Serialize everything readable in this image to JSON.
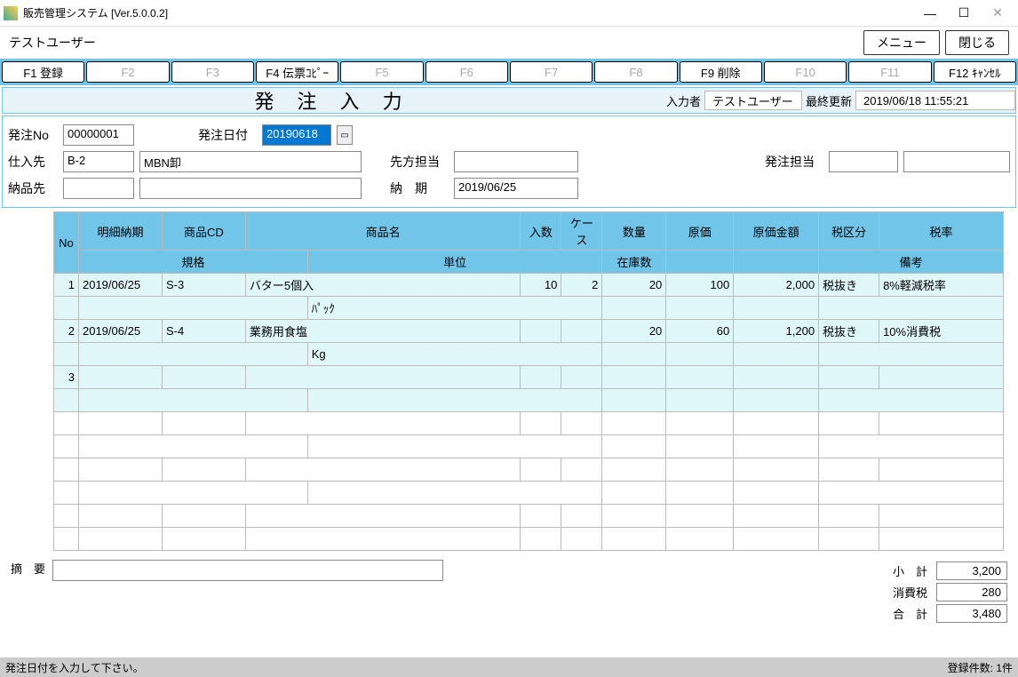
{
  "window": {
    "title": "販売管理システム [Ver.5.0.0.2]"
  },
  "user": "テストユーザー",
  "topButtons": {
    "menu": "メニュー",
    "close": "閉じる"
  },
  "fkeys": [
    {
      "label": "F1 登録",
      "enabled": true
    },
    {
      "label": "F2",
      "enabled": false
    },
    {
      "label": "F3",
      "enabled": false
    },
    {
      "label": "F4 伝票ｺﾋﾟｰ",
      "enabled": true
    },
    {
      "label": "F5",
      "enabled": false
    },
    {
      "label": "F6",
      "enabled": false
    },
    {
      "label": "F7",
      "enabled": false
    },
    {
      "label": "F8",
      "enabled": false
    },
    {
      "label": "F9 削除",
      "enabled": true
    },
    {
      "label": "F10",
      "enabled": false
    },
    {
      "label": "F11",
      "enabled": false
    },
    {
      "label": "F12 ｷｬﾝｾﾙ",
      "enabled": true
    }
  ],
  "header": {
    "screenTitle": "発 注 入 力",
    "inputByLabel": "入力者",
    "inputBy": "テストユーザー",
    "lastUpdateLabel": "最終更新",
    "lastUpdate": "2019/06/18 11:55:21"
  },
  "form": {
    "orderNoLabel": "発注No",
    "orderNo": "00000001",
    "orderDateLabel": "発注日付",
    "orderDate": "20190618",
    "supplierLabel": "仕入先",
    "supplierCode": "B-2",
    "supplierName": "MBN卸",
    "contactLabel": "先方担当",
    "contact": "",
    "managerLabel": "発注担当",
    "managerCode": "",
    "managerName": "",
    "deliveryLabel": "納品先",
    "deliveryCode": "",
    "deliveryName": "",
    "dueLabel": "納　期",
    "due": "2019/06/25"
  },
  "columns": {
    "no": "No",
    "detailDue": "明細納期",
    "productCd": "商品CD",
    "productName": "商品名",
    "qtyIn": "入数",
    "caseQ": "ケース",
    "qty": "数量",
    "cost": "原価",
    "amount": "原価金額",
    "taxClass": "税区分",
    "taxRate": "税率",
    "spec": "規格",
    "unit": "単位",
    "stock": "在庫数",
    "remarks": "備考"
  },
  "rows": [
    {
      "no": "1",
      "due": "2019/06/25",
      "cd": "S-3",
      "name": "バター5個入",
      "inQ": "10",
      "case": "2",
      "qty": "20",
      "cost": "100",
      "amount": "2,000",
      "taxClass": "税抜き",
      "taxRate": "8%軽減税率",
      "spec": "",
      "unit": "ﾊﾟｯｸ",
      "stock": "",
      "remarks": ""
    },
    {
      "no": "2",
      "due": "2019/06/25",
      "cd": "S-4",
      "name": "業務用食塩",
      "inQ": "",
      "case": "",
      "qty": "20",
      "cost": "60",
      "amount": "1,200",
      "taxClass": "税抜き",
      "taxRate": "10%消費税",
      "spec": "",
      "unit": "Kg",
      "stock": "",
      "remarks": ""
    },
    {
      "no": "3",
      "due": "",
      "cd": "",
      "name": "",
      "inQ": "",
      "case": "",
      "qty": "",
      "cost": "",
      "amount": "",
      "taxClass": "",
      "taxRate": "",
      "spec": "",
      "unit": "",
      "stock": "",
      "remarks": ""
    }
  ],
  "summaryLabel": "摘　要",
  "summary": "",
  "totals": {
    "subLabel": "小　計",
    "sub": "3,200",
    "taxLabel": "消費税",
    "tax": "280",
    "totalLabel": "合　計",
    "total": "3,480"
  },
  "status": {
    "msg": "発注日付を入力して下さい。",
    "count": "登録件数: 1件"
  },
  "colors": {
    "accent": "#71c5e8",
    "headerBg": "#e7f3f9",
    "tint": "#e0f7fa",
    "select": "#0078d4"
  }
}
